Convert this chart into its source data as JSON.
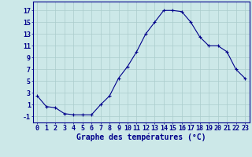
{
  "hours": [
    0,
    1,
    2,
    3,
    4,
    5,
    6,
    7,
    8,
    9,
    10,
    11,
    12,
    13,
    14,
    15,
    16,
    17,
    18,
    19,
    20,
    21,
    22,
    23
  ],
  "temps": [
    2.5,
    0.7,
    0.5,
    -0.5,
    -0.7,
    -0.7,
    -0.7,
    1.0,
    2.5,
    5.5,
    7.5,
    10.0,
    13.0,
    15.0,
    17.0,
    17.0,
    16.8,
    15.0,
    12.5,
    11.0,
    11.0,
    10.0,
    7.0,
    5.5
  ],
  "line_color": "#00008B",
  "marker": "+",
  "marker_size": 3,
  "bg_color": "#cce8e8",
  "grid_color": "#aacccc",
  "xlabel": "Graphe des températures (°C)",
  "ylabel_ticks": [
    -1,
    1,
    3,
    5,
    7,
    9,
    11,
    13,
    15,
    17
  ],
  "xtick_labels": [
    "0",
    "1",
    "2",
    "3",
    "4",
    "5",
    "6",
    "7",
    "8",
    "9",
    "10",
    "11",
    "12",
    "13",
    "14",
    "15",
    "16",
    "17",
    "18",
    "19",
    "20",
    "21",
    "22",
    "23"
  ],
  "ylim": [
    -2.0,
    18.5
  ],
  "xlim": [
    -0.5,
    23.5
  ],
  "xlabel_fontsize": 7,
  "tick_fontsize": 6,
  "axis_color": "#00008B",
  "linewidth": 0.8,
  "marker_edgewidth": 0.8
}
